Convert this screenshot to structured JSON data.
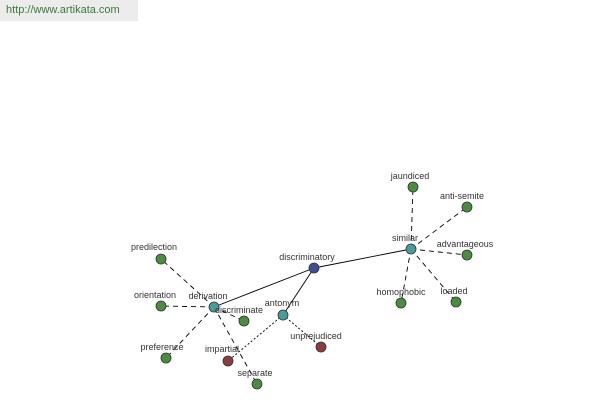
{
  "header": {
    "url": "http://www.artikata.com"
  },
  "nodes": [
    {
      "label": "discriminatory"
    },
    {
      "label": "similar"
    },
    {
      "label": "derivation"
    },
    {
      "label": "antonym"
    },
    {
      "label": "jaundiced"
    },
    {
      "label": "anti-semite"
    },
    {
      "label": "advantageous"
    },
    {
      "label": "loaded"
    },
    {
      "label": "homophobic"
    },
    {
      "label": "predilection"
    },
    {
      "label": "orientation"
    },
    {
      "label": "preference"
    },
    {
      "label": "discriminate"
    },
    {
      "label": "impartial"
    },
    {
      "label": "separate"
    },
    {
      "label": "unprejudiced"
    }
  ]
}
